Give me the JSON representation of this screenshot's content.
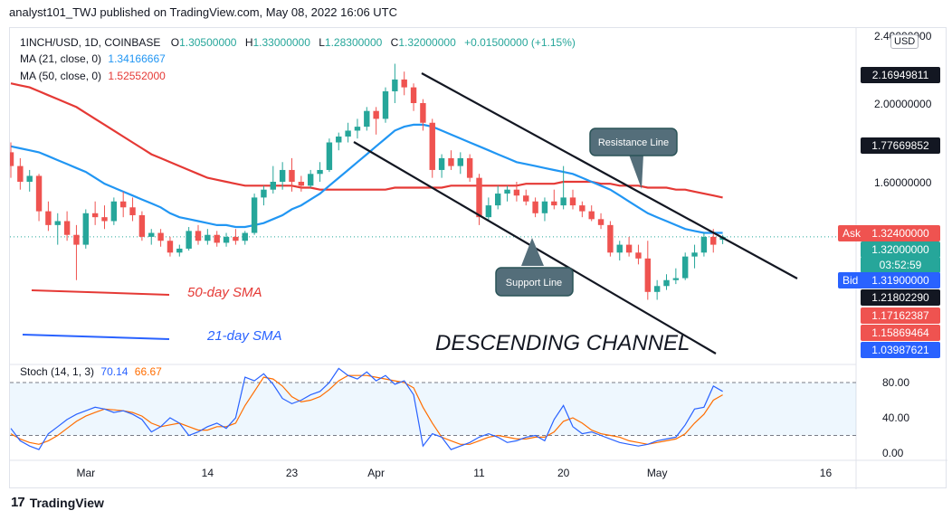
{
  "header": {
    "text": "analyst101_TWJ published on TradingView.com, May 08, 2022 16:06 UTC"
  },
  "legend": {
    "symbol": "1INCH/USD, 1D, COINBASE",
    "o_label": "O",
    "o": "1.30500000",
    "h_label": "H",
    "h": "1.33000000",
    "l_label": "L",
    "l": "1.28300000",
    "c_label": "C",
    "c": "1.32000000",
    "change": "+0.01500000 (+1.15%)",
    "ma21_label": "MA (21, close, 0)",
    "ma21_value": "1.34166667",
    "ma50_label": "MA (50, close, 0)",
    "ma50_value": "1.52552000",
    "stoch_label": "Stoch (14, 1, 3)",
    "stoch_k": "70.14",
    "stoch_d": "66.67"
  },
  "annotations": {
    "resistance": "Resistance Line",
    "support": "Support Line",
    "sma50": "50-day SMA",
    "sma21": "21-day SMA",
    "channel": "DESCENDING CHANNEL"
  },
  "price_axis": {
    "currency": "USD",
    "ticks": [
      "2.40000000",
      "2.00000000",
      "1.60000000"
    ],
    "top_clipped": "2.4",
    "labels": [
      {
        "text": "2.16949811",
        "bg": "#131722"
      },
      {
        "text": "1.77669852",
        "bg": "#131722"
      },
      {
        "text": "1.32000000",
        "bg": "#26a69a"
      },
      {
        "text": "03:52:59",
        "bg": "#26a69a"
      },
      {
        "text": "1.21802290",
        "bg": "#131722"
      },
      {
        "text": "1.17162387",
        "bg": "#ef5350"
      },
      {
        "text": "1.15869464",
        "bg": "#ef5350"
      },
      {
        "text": "1.03987621",
        "bg": "#2962ff"
      }
    ],
    "ask_label": "Ask",
    "ask_value": "1.32400000",
    "bid_label": "Bid",
    "bid_value": "1.31900000"
  },
  "stoch_axis": {
    "ticks": [
      "80.00",
      "40.00",
      "0.00"
    ]
  },
  "time_axis": {
    "labels": [
      "Mar",
      "14",
      "23",
      "Apr",
      "11",
      "20",
      "May",
      "16"
    ]
  },
  "footer": {
    "brand": "TradingView"
  },
  "colors": {
    "up": "#26a69a",
    "down": "#ef5350",
    "ma21": "#2196f3",
    "ma50": "#e53935",
    "stoch_k": "#2962ff",
    "stoch_d": "#ff6d00"
  },
  "chart_data": {
    "type": "candlestick",
    "x": [
      "Feb 21",
      "Feb 22",
      "Feb 23",
      "Feb 24",
      "Feb 25",
      "Feb 26",
      "Feb 27",
      "Feb 28",
      "Mar 1",
      "Mar 2",
      "Mar 3",
      "Mar 4",
      "Mar 5",
      "Mar 6",
      "Mar 7",
      "Mar 8",
      "Mar 9",
      "Mar 10",
      "Mar 11",
      "Mar 12",
      "Mar 13",
      "Mar 14",
      "Mar 15",
      "Mar 16",
      "Mar 17",
      "Mar 18",
      "Mar 19",
      "Mar 20",
      "Mar 21",
      "Mar 22",
      "Mar 23",
      "Mar 24",
      "Mar 25",
      "Mar 26",
      "Mar 27",
      "Mar 28",
      "Mar 29",
      "Mar 30",
      "Mar 31",
      "Apr 1",
      "Apr 2",
      "Apr 3",
      "Apr 4",
      "Apr 5",
      "Apr 6",
      "Apr 7",
      "Apr 8",
      "Apr 9",
      "Apr 10",
      "Apr 11",
      "Apr 12",
      "Apr 13",
      "Apr 14",
      "Apr 15",
      "Apr 16",
      "Apr 17",
      "Apr 18",
      "Apr 19",
      "Apr 20",
      "Apr 21",
      "Apr 22",
      "Apr 23",
      "Apr 24",
      "Apr 25",
      "Apr 26",
      "Apr 27",
      "Apr 28",
      "Apr 29",
      "Apr 30",
      "May 1",
      "May 2",
      "May 3",
      "May 4",
      "May 5",
      "May 6",
      "May 7",
      "May 8"
    ],
    "ohlc": [
      [
        1.75,
        1.8,
        1.62,
        1.68
      ],
      [
        1.68,
        1.72,
        1.56,
        1.6
      ],
      [
        1.6,
        1.66,
        1.55,
        1.63
      ],
      [
        1.63,
        1.64,
        1.4,
        1.45
      ],
      [
        1.45,
        1.5,
        1.35,
        1.38
      ],
      [
        1.38,
        1.44,
        1.28,
        1.4
      ],
      [
        1.4,
        1.45,
        1.3,
        1.33
      ],
      [
        1.33,
        1.38,
        1.1,
        1.28
      ],
      [
        1.28,
        1.46,
        1.26,
        1.44
      ],
      [
        1.44,
        1.5,
        1.38,
        1.42
      ],
      [
        1.42,
        1.48,
        1.36,
        1.4
      ],
      [
        1.4,
        1.52,
        1.38,
        1.5
      ],
      [
        1.5,
        1.55,
        1.42,
        1.47
      ],
      [
        1.47,
        1.52,
        1.4,
        1.43
      ],
      [
        1.43,
        1.45,
        1.3,
        1.32
      ],
      [
        1.32,
        1.36,
        1.28,
        1.34
      ],
      [
        1.34,
        1.36,
        1.27,
        1.3
      ],
      [
        1.3,
        1.32,
        1.22,
        1.24
      ],
      [
        1.24,
        1.28,
        1.22,
        1.26
      ],
      [
        1.26,
        1.37,
        1.25,
        1.35
      ],
      [
        1.35,
        1.38,
        1.28,
        1.3
      ],
      [
        1.3,
        1.36,
        1.28,
        1.33
      ],
      [
        1.33,
        1.35,
        1.27,
        1.29
      ],
      [
        1.29,
        1.34,
        1.27,
        1.32
      ],
      [
        1.32,
        1.36,
        1.28,
        1.3
      ],
      [
        1.3,
        1.35,
        1.28,
        1.34
      ],
      [
        1.34,
        1.54,
        1.33,
        1.52
      ],
      [
        1.52,
        1.58,
        1.48,
        1.56
      ],
      [
        1.56,
        1.68,
        1.54,
        1.6
      ],
      [
        1.6,
        1.7,
        1.56,
        1.66
      ],
      [
        1.66,
        1.72,
        1.55,
        1.6
      ],
      [
        1.6,
        1.63,
        1.55,
        1.58
      ],
      [
        1.58,
        1.66,
        1.57,
        1.64
      ],
      [
        1.64,
        1.7,
        1.6,
        1.66
      ],
      [
        1.66,
        1.82,
        1.65,
        1.8
      ],
      [
        1.8,
        1.85,
        1.76,
        1.83
      ],
      [
        1.83,
        1.9,
        1.8,
        1.86
      ],
      [
        1.86,
        1.92,
        1.82,
        1.88
      ],
      [
        1.88,
        1.98,
        1.86,
        1.96
      ],
      [
        1.96,
        1.98,
        1.84,
        1.92
      ],
      [
        1.92,
        2.08,
        1.9,
        2.06
      ],
      [
        2.06,
        2.2,
        2.0,
        2.12
      ],
      [
        2.12,
        2.16,
        2.04,
        2.08
      ],
      [
        2.08,
        2.1,
        1.96,
        2.0
      ],
      [
        2.0,
        2.02,
        1.86,
        1.9
      ],
      [
        1.9,
        1.92,
        1.62,
        1.66
      ],
      [
        1.66,
        1.74,
        1.62,
        1.72
      ],
      [
        1.72,
        1.76,
        1.66,
        1.68
      ],
      [
        1.68,
        1.75,
        1.64,
        1.72
      ],
      [
        1.72,
        1.74,
        1.6,
        1.62
      ],
      [
        1.62,
        1.64,
        1.38,
        1.42
      ],
      [
        1.42,
        1.52,
        1.4,
        1.48
      ],
      [
        1.48,
        1.58,
        1.46,
        1.54
      ],
      [
        1.54,
        1.58,
        1.5,
        1.56
      ],
      [
        1.56,
        1.6,
        1.5,
        1.53
      ],
      [
        1.53,
        1.56,
        1.48,
        1.5
      ],
      [
        1.5,
        1.52,
        1.42,
        1.44
      ],
      [
        1.44,
        1.52,
        1.4,
        1.5
      ],
      [
        1.5,
        1.56,
        1.46,
        1.48
      ],
      [
        1.48,
        1.68,
        1.46,
        1.52
      ],
      [
        1.52,
        1.56,
        1.46,
        1.48
      ],
      [
        1.48,
        1.5,
        1.42,
        1.45
      ],
      [
        1.45,
        1.48,
        1.4,
        1.41
      ],
      [
        1.41,
        1.44,
        1.36,
        1.38
      ],
      [
        1.38,
        1.4,
        1.22,
        1.24
      ],
      [
        1.24,
        1.3,
        1.2,
        1.28
      ],
      [
        1.28,
        1.32,
        1.22,
        1.24
      ],
      [
        1.24,
        1.28,
        1.18,
        1.21
      ],
      [
        1.21,
        1.3,
        1.0,
        1.04
      ],
      [
        1.04,
        1.1,
        1.0,
        1.07
      ],
      [
        1.07,
        1.13,
        1.05,
        1.1
      ],
      [
        1.1,
        1.16,
        1.08,
        1.11
      ],
      [
        1.11,
        1.24,
        1.1,
        1.22
      ],
      [
        1.22,
        1.28,
        1.16,
        1.24
      ],
      [
        1.24,
        1.34,
        1.22,
        1.32
      ],
      [
        1.32,
        1.36,
        1.24,
        1.28
      ],
      [
        1.305,
        1.33,
        1.283,
        1.32
      ]
    ],
    "ma21": [
      1.78,
      1.77,
      1.76,
      1.75,
      1.73,
      1.71,
      1.69,
      1.67,
      1.65,
      1.62,
      1.59,
      1.57,
      1.55,
      1.53,
      1.51,
      1.49,
      1.47,
      1.44,
      1.42,
      1.41,
      1.4,
      1.39,
      1.38,
      1.38,
      1.37,
      1.37,
      1.38,
      1.39,
      1.41,
      1.43,
      1.46,
      1.48,
      1.51,
      1.54,
      1.58,
      1.62,
      1.66,
      1.7,
      1.74,
      1.78,
      1.82,
      1.86,
      1.88,
      1.89,
      1.89,
      1.88,
      1.86,
      1.84,
      1.82,
      1.8,
      1.78,
      1.76,
      1.74,
      1.72,
      1.7,
      1.69,
      1.68,
      1.67,
      1.66,
      1.65,
      1.64,
      1.62,
      1.6,
      1.58,
      1.56,
      1.53,
      1.5,
      1.47,
      1.44,
      1.42,
      1.4,
      1.38,
      1.36,
      1.35,
      1.34,
      1.34,
      1.34
    ],
    "ma50": [
      2.1,
      2.09,
      2.08,
      2.06,
      2.04,
      2.02,
      2.0,
      1.98,
      1.95,
      1.92,
      1.89,
      1.86,
      1.83,
      1.8,
      1.77,
      1.74,
      1.72,
      1.7,
      1.68,
      1.66,
      1.64,
      1.62,
      1.61,
      1.6,
      1.59,
      1.58,
      1.58,
      1.58,
      1.58,
      1.58,
      1.58,
      1.57,
      1.57,
      1.56,
      1.56,
      1.56,
      1.56,
      1.56,
      1.56,
      1.56,
      1.56,
      1.57,
      1.57,
      1.57,
      1.57,
      1.57,
      1.57,
      1.58,
      1.58,
      1.58,
      1.58,
      1.58,
      1.58,
      1.58,
      1.58,
      1.59,
      1.59,
      1.59,
      1.59,
      1.6,
      1.6,
      1.6,
      1.6,
      1.59,
      1.59,
      1.58,
      1.58,
      1.58,
      1.57,
      1.57,
      1.57,
      1.56,
      1.56,
      1.55,
      1.54,
      1.53,
      1.52
    ],
    "stoch_k": [
      28,
      14,
      8,
      4,
      22,
      30,
      38,
      44,
      48,
      52,
      50,
      46,
      48,
      44,
      38,
      24,
      30,
      40,
      34,
      20,
      24,
      30,
      34,
      28,
      40,
      86,
      82,
      90,
      78,
      62,
      56,
      60,
      66,
      70,
      80,
      96,
      88,
      84,
      92,
      82,
      88,
      78,
      82,
      66,
      8,
      22,
      18,
      4,
      8,
      12,
      18,
      22,
      18,
      12,
      14,
      18,
      20,
      14,
      38,
      54,
      30,
      22,
      24,
      20,
      16,
      12,
      10,
      8,
      10,
      14,
      16,
      18,
      32,
      50,
      52,
      76,
      70
    ],
    "stoch_d": [
      22,
      16,
      12,
      10,
      14,
      20,
      28,
      36,
      42,
      46,
      50,
      49,
      48,
      46,
      42,
      34,
      30,
      32,
      34,
      30,
      26,
      26,
      30,
      30,
      34,
      54,
      70,
      86,
      84,
      76,
      64,
      58,
      60,
      64,
      72,
      82,
      88,
      88,
      88,
      86,
      84,
      82,
      80,
      74,
      52,
      34,
      18,
      14,
      10,
      10,
      14,
      18,
      20,
      18,
      16,
      16,
      18,
      18,
      24,
      36,
      40,
      34,
      26,
      22,
      20,
      18,
      14,
      12,
      10,
      12,
      14,
      16,
      22,
      34,
      44,
      60,
      66
    ]
  }
}
